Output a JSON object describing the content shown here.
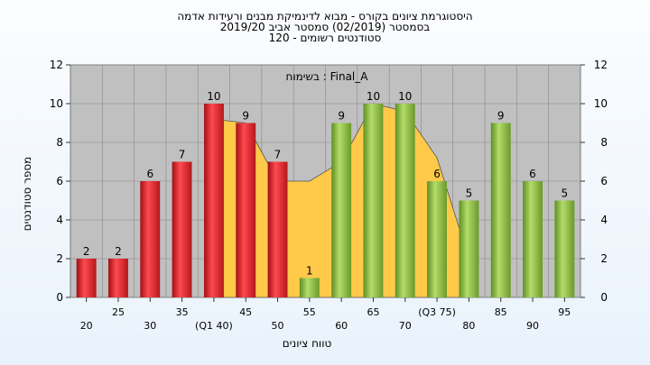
{
  "header": {
    "title_line1": "היסטוגרמת ציונים בקורס - מבוא לדינמיקת מבנים ורעידות אדמה",
    "title_line2": "בסמסטר   (02/2019)  סמסטר אביב 2019/20",
    "title_line3": "סטודנטים רשומים - 120"
  },
  "chart_data": {
    "type": "bar",
    "annotation": "בשימוח : Final_A",
    "xlabel": "טווח ציונים",
    "ylabel": "מספר סטודנטים",
    "ylim": [
      0,
      12
    ],
    "yticks": [
      0,
      2,
      4,
      6,
      8,
      10,
      12
    ],
    "grid": true,
    "categories": [
      "20",
      "25",
      "30",
      "35",
      "(Q1 40)",
      "45",
      "50",
      "55",
      "60",
      "65",
      "70",
      "(Q3 75)",
      "80",
      "85",
      "90",
      "95"
    ],
    "values": [
      2,
      2,
      6,
      7,
      10,
      9,
      7,
      1,
      9,
      10,
      10,
      6,
      5,
      9,
      6,
      5
    ],
    "bar_colors": [
      "red",
      "red",
      "red",
      "red",
      "red",
      "red",
      "red",
      "green",
      "green",
      "green",
      "green",
      "green",
      "green",
      "green",
      "green",
      "green"
    ],
    "shaded_area_values": [
      null,
      null,
      null,
      null,
      9.2,
      9,
      6,
      6,
      7,
      10,
      9.6,
      7.2,
      2,
      null,
      null,
      null
    ],
    "colors": {
      "red": "#e8232a",
      "green": "#8fc043",
      "area": "#ffc94a",
      "plot_bg": "#c0c0c0"
    }
  }
}
